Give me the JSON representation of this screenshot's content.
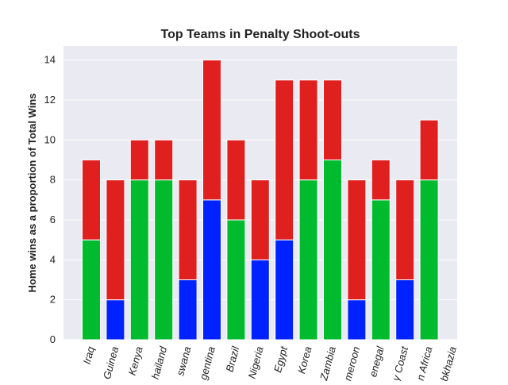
{
  "chart_data": {
    "type": "stacked-bar",
    "title": "Top Teams in Penalty Shoot-outs",
    "y_label": "Home wins as a proportion of Total Wins",
    "categories": [
      "Iraq",
      "Guinea",
      "Kenya",
      "hailand",
      "swana",
      "gentina",
      "Brazil",
      "Nigeria",
      "Egypt",
      "Korea",
      "Zambia",
      "meroon",
      "enegal",
      "y Coast",
      "n Africa",
      "bkhazia"
    ],
    "series": [
      {
        "colors": [
          "#00bb2d",
          "#0022ff",
          "#00bb2d",
          "#00bb2d",
          "#0022ff",
          "#0022ff",
          "#00bb2d",
          "#0022ff",
          "#0022ff",
          "#00bb2d",
          "#00bb2d",
          "#0022ff",
          "#00bb2d",
          "#0022ff",
          "#00bb2d",
          "#00bb2d"
        ],
        "values": [
          5,
          2,
          8,
          8,
          3,
          7,
          6,
          4,
          5,
          8,
          9,
          2,
          7,
          3,
          8,
          null
        ]
      },
      {
        "color": "#e01f1f",
        "values": [
          4,
          6,
          2,
          2,
          5,
          7,
          4,
          4,
          8,
          5,
          4,
          6,
          2,
          5,
          3,
          null
        ]
      }
    ],
    "ylim": [
      0,
      14.7
    ],
    "yticks": [
      0,
      2,
      4,
      6,
      8,
      10,
      12,
      14
    ],
    "grid": true
  }
}
